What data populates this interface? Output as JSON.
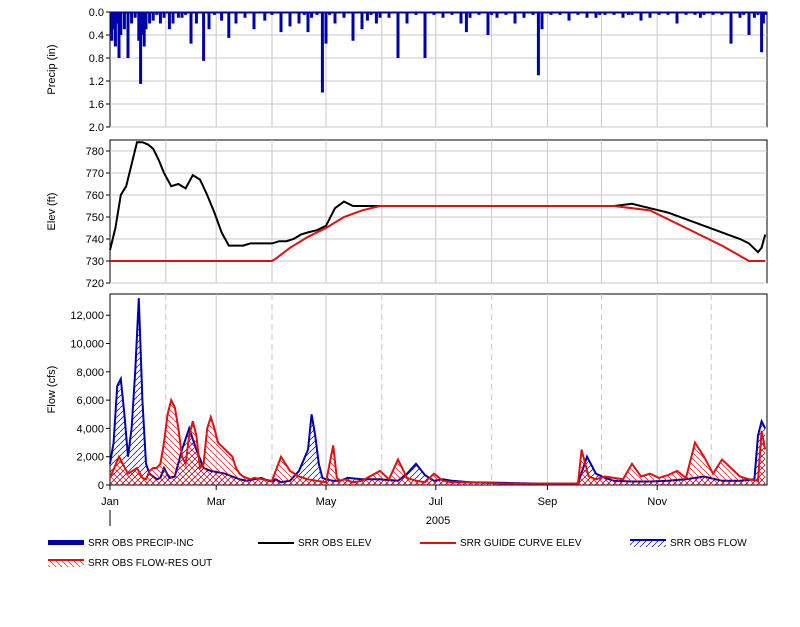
{
  "chart_data": [
    {
      "type": "bar",
      "ylabel": "Precip (in)",
      "ylim": [
        0,
        2.0
      ],
      "inverted": true,
      "yticks": [
        "0.0",
        "0.4",
        "0.8",
        "1.2",
        "1.6",
        "2.0"
      ],
      "series": [
        {
          "name": "SRR OBS PRECIP-INC",
          "color": "#0000aa",
          "x": [
            1,
            2,
            3,
            4,
            5,
            6,
            8,
            10,
            12,
            14,
            16,
            17,
            18,
            19,
            20,
            22,
            24,
            26,
            28,
            30,
            33,
            35,
            38,
            40,
            42,
            45,
            48,
            52,
            55,
            58,
            62,
            66,
            70,
            75,
            80,
            86,
            90,
            95,
            100,
            105,
            108,
            110,
            112,
            115,
            118,
            120,
            122,
            125,
            130,
            135,
            140,
            143,
            145,
            148,
            150,
            155,
            160,
            165,
            170,
            175,
            180,
            185,
            190,
            195,
            198,
            200,
            205,
            210,
            212,
            215,
            220,
            225,
            230,
            235,
            238,
            240,
            245,
            250,
            255,
            260,
            265,
            270,
            272,
            275,
            280,
            285,
            288,
            290,
            295,
            300,
            305,
            310,
            315,
            320,
            325,
            328,
            330,
            335,
            340,
            345,
            350,
            352,
            355,
            358,
            360,
            362,
            363,
            364
          ],
          "values": [
            0.5,
            0.3,
            0.6,
            0.2,
            0.8,
            0.4,
            0.3,
            0.8,
            0.2,
            0.1,
            0.5,
            1.25,
            0.4,
            0.6,
            0.3,
            0.2,
            0.15,
            0.05,
            0.2,
            0.1,
            0.3,
            0.2,
            0.1,
            0.1,
            0.05,
            0.55,
            0.2,
            0.85,
            0.3,
            0.05,
            0.15,
            0.45,
            0.2,
            0.1,
            0.3,
            0.15,
            0.05,
            0.35,
            0.25,
            0.2,
            0.05,
            0.35,
            0.1,
            0.05,
            1.4,
            0.55,
            0.05,
            0.2,
            0.1,
            0.5,
            0.3,
            0.15,
            0.05,
            0.2,
            0.1,
            0.1,
            0.8,
            0.2,
            0.05,
            0.8,
            0.05,
            0.1,
            0.05,
            0.2,
            0.35,
            0.1,
            0.05,
            0.4,
            0.05,
            0.1,
            0.05,
            0.2,
            0.1,
            0.05,
            1.1,
            0.3,
            0.05,
            0.05,
            0.15,
            0.05,
            0.1,
            0.1,
            0.05,
            0.05,
            0.05,
            0.1,
            0.05,
            0.05,
            0.15,
            0.1,
            0.05,
            0.05,
            0.2,
            0.05,
            0.05,
            0.1,
            0.05,
            0.05,
            0.05,
            0.55,
            0.1,
            0.05,
            0.4,
            0.1,
            0.05,
            0.7,
            0.2,
            0.05
          ]
        }
      ]
    },
    {
      "type": "line",
      "ylabel": "Elev (ft)",
      "ylim": [
        720,
        785
      ],
      "yticks": [
        "720",
        "730",
        "740",
        "750",
        "760",
        "770",
        "780"
      ],
      "series": [
        {
          "name": "SRR OBS ELEV",
          "color": "#000000",
          "x": [
            0,
            3,
            6,
            9,
            12,
            15,
            18,
            21,
            24,
            27,
            30,
            34,
            38,
            42,
            46,
            50,
            54,
            58,
            62,
            66,
            70,
            74,
            78,
            82,
            86,
            90,
            94,
            98,
            102,
            106,
            110,
            115,
            120,
            125,
            130,
            135,
            140,
            150,
            160,
            170,
            180,
            190,
            200,
            210,
            220,
            230,
            240,
            250,
            260,
            270,
            280,
            290,
            300,
            310,
            320,
            330,
            340,
            350,
            355,
            360,
            362,
            364
          ],
          "y": [
            735,
            745,
            760,
            764,
            774,
            784,
            784,
            783,
            781,
            776,
            770,
            764,
            765,
            763,
            769,
            767,
            760,
            752,
            743,
            737,
            737,
            737,
            738,
            738,
            738,
            738,
            739,
            739,
            740,
            742,
            743,
            744,
            746,
            754,
            757,
            755,
            755,
            755,
            755,
            755,
            755,
            755,
            755,
            755,
            755,
            755,
            755,
            755,
            755,
            755,
            755,
            756,
            754,
            752,
            749,
            746,
            743,
            740,
            738,
            734,
            736,
            742
          ]
        },
        {
          "name": "SRR GUIDE CURVE ELEV",
          "color": "#dd1111",
          "x": [
            0,
            90,
            92,
            100,
            110,
            120,
            130,
            140,
            150,
            200,
            250,
            280,
            300,
            320,
            340,
            355,
            364
          ],
          "y": [
            730,
            730,
            731,
            736,
            741,
            745,
            750,
            753,
            755,
            755,
            755,
            755,
            753,
            745,
            737,
            730,
            730
          ]
        }
      ]
    },
    {
      "type": "area",
      "ylabel": "Flow (cfs)",
      "ylim": [
        0,
        13500
      ],
      "yticks": [
        "0",
        "2,000",
        "4,000",
        "6,000",
        "8,000",
        "10,000",
        "12,000"
      ],
      "x_months": [
        "Jan",
        "Mar",
        "May",
        "Jul",
        "Sep",
        "Nov"
      ],
      "x_month_days": [
        0,
        59,
        120,
        181,
        243,
        304
      ],
      "x_minor_days": [
        31,
        90,
        151,
        212,
        273,
        334
      ],
      "x_year": "2005",
      "series": [
        {
          "name": "SRR OBS FLOW",
          "color": "#0000aa",
          "x": [
            0,
            2,
            4,
            6,
            8,
            10,
            12,
            14,
            16,
            18,
            20,
            22,
            24,
            26,
            28,
            30,
            33,
            36,
            40,
            44,
            48,
            52,
            56,
            60,
            64,
            68,
            72,
            76,
            80,
            84,
            88,
            90,
            92,
            95,
            100,
            105,
            110,
            112,
            114,
            116,
            118,
            120,
            124,
            128,
            132,
            140,
            150,
            160,
            165,
            170,
            175,
            180,
            185,
            190,
            200,
            220,
            240,
            260,
            265,
            270,
            275,
            280,
            290,
            300,
            310,
            320,
            330,
            340,
            350,
            358,
            360,
            362,
            364
          ],
          "y": [
            1500,
            3000,
            7000,
            7500,
            5000,
            2000,
            4000,
            8000,
            13200,
            6000,
            1500,
            800,
            600,
            400,
            500,
            1200,
            500,
            600,
            2500,
            4000,
            2500,
            1200,
            1000,
            900,
            800,
            600,
            400,
            300,
            400,
            500,
            300,
            250,
            400,
            200,
            300,
            1000,
            2500,
            5000,
            3500,
            1500,
            500,
            400,
            300,
            300,
            500,
            400,
            400,
            300,
            800,
            1500,
            700,
            300,
            400,
            300,
            200,
            150,
            100,
            100,
            2000,
            800,
            500,
            300,
            250,
            250,
            300,
            400,
            600,
            300,
            300,
            400,
            3500,
            4500,
            4000
          ]
        },
        {
          "name": "SRR OBS FLOW-RES OUT",
          "color": "#dd1111",
          "x": [
            0,
            5,
            10,
            15,
            18,
            20,
            22,
            24,
            26,
            28,
            30,
            32,
            34,
            36,
            38,
            40,
            42,
            44,
            46,
            48,
            50,
            52,
            54,
            56,
            58,
            60,
            64,
            68,
            70,
            72,
            74,
            76,
            78,
            80,
            85,
            90,
            95,
            100,
            105,
            110,
            115,
            120,
            122,
            124,
            126,
            128,
            130,
            135,
            140,
            150,
            155,
            160,
            165,
            170,
            175,
            180,
            185,
            190,
            200,
            220,
            240,
            260,
            262,
            264,
            266,
            268,
            270,
            275,
            280,
            285,
            290,
            295,
            300,
            305,
            310,
            315,
            320,
            325,
            330,
            335,
            340,
            350,
            355,
            360,
            362,
            364
          ],
          "y": [
            500,
            2000,
            800,
            1200,
            500,
            400,
            1000,
            1200,
            1200,
            1500,
            3000,
            5000,
            6000,
            5500,
            4000,
            2000,
            1500,
            3500,
            4500,
            3500,
            1200,
            1500,
            4000,
            4800,
            4000,
            3000,
            2500,
            2000,
            1200,
            800,
            600,
            500,
            400,
            500,
            400,
            300,
            2000,
            1000,
            600,
            400,
            300,
            200,
            1500,
            2800,
            500,
            300,
            400,
            200,
            300,
            1000,
            400,
            1800,
            500,
            300,
            200,
            800,
            300,
            200,
            200,
            100,
            100,
            100,
            2500,
            1500,
            600,
            500,
            400,
            600,
            500,
            400,
            1500,
            600,
            800,
            500,
            700,
            1000,
            500,
            3000,
            2000,
            800,
            1800,
            600,
            400,
            300,
            3800,
            2500
          ]
        }
      ]
    }
  ],
  "legend": {
    "items": [
      {
        "label": "SRR OBS PRECIP-INC",
        "style": "thick-bar",
        "color": "#0000aa"
      },
      {
        "label": "SRR OBS ELEV",
        "style": "line",
        "color": "#000000"
      },
      {
        "label": "SRR GUIDE CURVE ELEV",
        "style": "line",
        "color": "#dd1111"
      },
      {
        "label": "SRR OBS FLOW",
        "style": "hatch-line",
        "color": "#0000aa"
      },
      {
        "label": "SRR OBS FLOW-RES OUT",
        "style": "hatch-line",
        "color": "#dd1111"
      }
    ]
  }
}
